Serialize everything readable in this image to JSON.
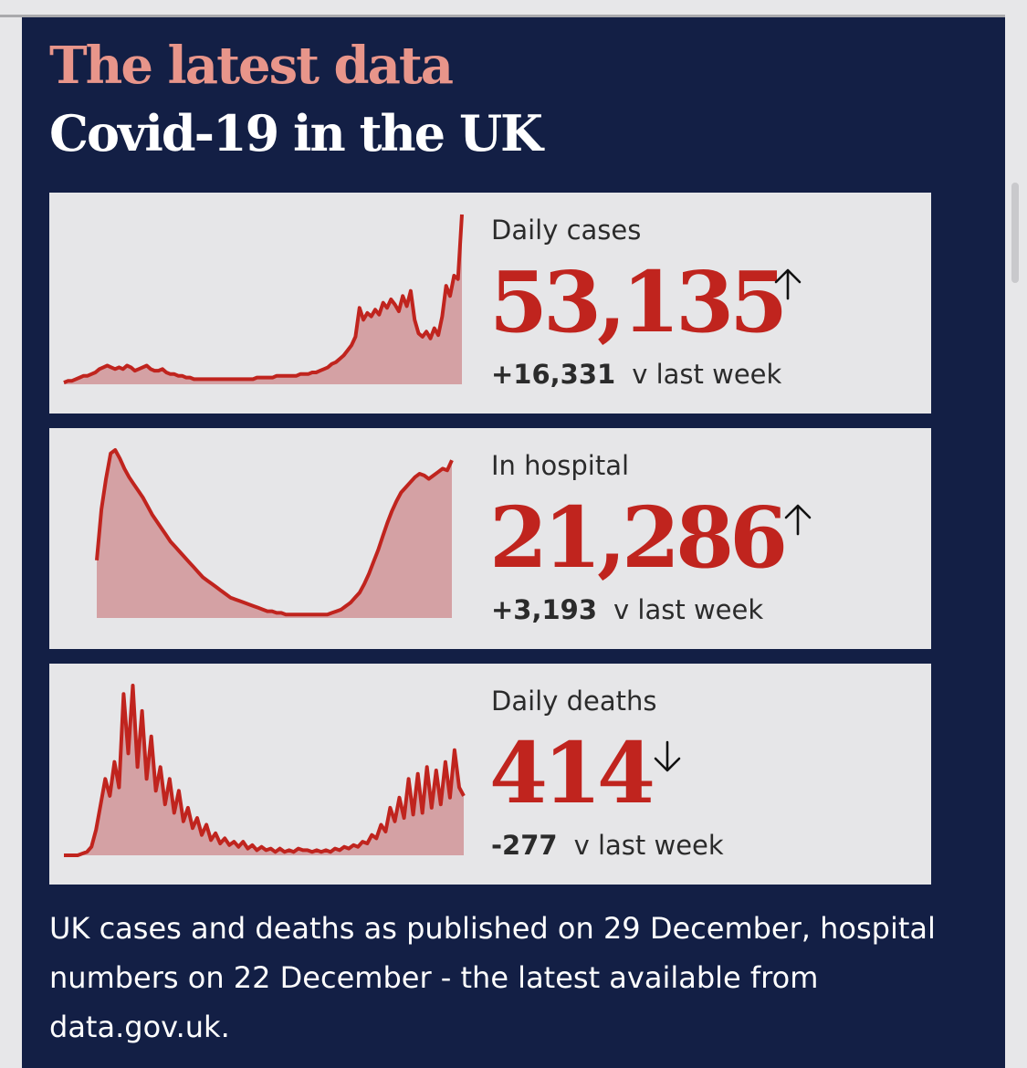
{
  "header": {
    "kicker": "The latest data",
    "title": "Covid-19 in the UK"
  },
  "colors": {
    "panel_bg": "#131f45",
    "card_bg": "#e6e6e8",
    "accent_red": "#c0241e",
    "area_fill": "#d4a1a4",
    "kicker_pink": "#e8958a"
  },
  "metrics": [
    {
      "label": "Daily cases",
      "value": "53,135",
      "trend_icon": "arrow-up-icon",
      "change": "+16,331",
      "change_suffix": "v last week"
    },
    {
      "label": "In hospital",
      "value": "21,286",
      "trend_icon": "arrow-up-icon",
      "change": "+3,193",
      "change_suffix": "v last week"
    },
    {
      "label": "Daily deaths",
      "value": "414",
      "trend_icon": "arrow-down-icon",
      "change": "-277",
      "change_suffix": "v last week"
    }
  ],
  "footnote": "UK cases and deaths as published on 29 December, hospital numbers on 22 December - the latest available from data.gov.uk.",
  "chart_data": [
    {
      "type": "area",
      "series": [
        {
          "values": [
            1,
            2,
            2,
            3,
            4,
            5,
            5,
            6,
            7,
            9,
            10,
            11,
            10,
            9,
            10,
            9,
            11,
            10,
            8,
            9,
            10,
            11,
            9,
            8,
            8,
            9,
            7,
            6,
            6,
            5,
            5,
            4,
            4,
            3,
            3,
            3,
            3,
            3,
            3,
            3,
            3,
            3,
            3,
            3,
            3,
            3,
            3,
            3,
            3,
            4,
            4,
            4,
            4,
            4,
            5,
            5,
            5,
            5,
            5,
            5,
            6,
            6,
            6,
            7,
            7,
            8,
            9,
            10,
            12,
            13,
            15,
            17,
            20,
            23,
            28,
            45,
            38,
            42,
            40,
            44,
            41,
            48,
            45,
            50,
            47,
            43,
            52,
            46,
            55,
            38,
            30,
            28,
            31,
            27,
            33,
            29,
            40,
            58,
            52,
            64,
            62,
            100
          ]
        }
      ]
    },
    {
      "type": "area",
      "series": [
        {
          "values": [
            34,
            64,
            82,
            97,
            99,
            94,
            88,
            83,
            79,
            75,
            71,
            66,
            61,
            57,
            53,
            49,
            45,
            42,
            39,
            36,
            33,
            30,
            27,
            24,
            22,
            20,
            18,
            16,
            14,
            12,
            11,
            10,
            9,
            8,
            7,
            6,
            5,
            4,
            4,
            3,
            3,
            2,
            2,
            2,
            2,
            2,
            2,
            2,
            2,
            2,
            2,
            3,
            4,
            5,
            7,
            9,
            12,
            15,
            20,
            26,
            33,
            40,
            48,
            56,
            63,
            69,
            74,
            77,
            80,
            83,
            85,
            84,
            82,
            84,
            86,
            88,
            87,
            93
          ]
        }
      ]
    },
    {
      "type": "area",
      "series": [
        {
          "values": [
            0,
            0,
            0,
            0,
            1,
            2,
            5,
            15,
            30,
            45,
            35,
            55,
            40,
            95,
            60,
            100,
            52,
            85,
            45,
            70,
            38,
            52,
            30,
            45,
            25,
            38,
            20,
            28,
            16,
            22,
            12,
            18,
            9,
            13,
            7,
            10,
            6,
            8,
            5,
            8,
            4,
            6,
            3,
            5,
            3,
            4,
            2,
            4,
            2,
            3,
            2,
            4,
            3,
            3,
            2,
            3,
            2,
            3,
            2,
            4,
            3,
            5,
            4,
            6,
            5,
            8,
            7,
            12,
            10,
            18,
            14,
            28,
            20,
            34,
            22,
            45,
            24,
            48,
            25,
            52,
            28,
            50,
            30,
            55,
            34,
            62,
            40,
            35
          ]
        }
      ]
    }
  ]
}
